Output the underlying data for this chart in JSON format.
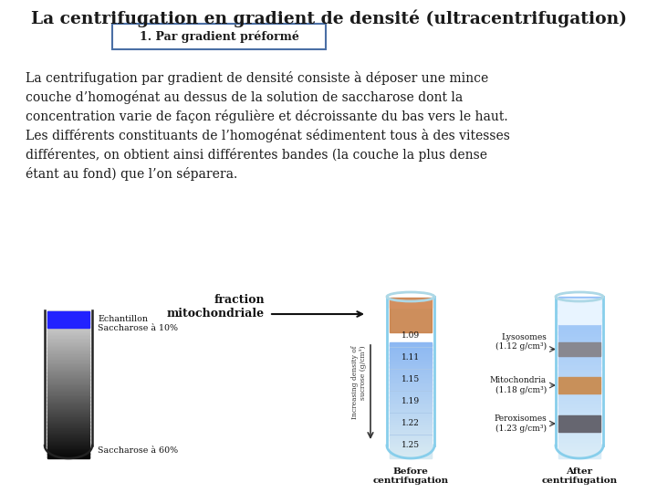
{
  "title": "La centrifugation en gradient de densité (ultracentrifugation)",
  "subtitle": "1. Par gradient préformé",
  "body_text": "La centrifugation par gradient de densité consiste à déposer une mince\ncouche d’homogénat au dessus de la solution de saccharose dont la\nconcentration varie de façon régulière et décroissante du bas vers le haut.\nLes différents constituants de l’homogénat sédimentent tous à des vitesses\ndifférentes, on obtient ainsi différentes bandes (la couche la plus dense\nétant au fond) que l’on séparera.",
  "label_echantillon": "Echantillon",
  "label_saccharose_10": "Saccharose à 10%",
  "label_saccharose_60": "Saccharose à 60%",
  "label_fraction": "fraction\nmitochondriale",
  "label_before": "Before\ncentrifugation",
  "label_after": "After\ncentrifugation",
  "label_increasing": "Increasing density of\nsucrose (g/cm³)",
  "densities": [
    "1.09",
    "1.11",
    "1.15",
    "1.19",
    "1.22",
    "1.25"
  ],
  "label_lysosomes": "Lysosomes\n(1.12 g/cm³)",
  "label_mitochondria": "Mitochondria\n(1.18 g/cm³)",
  "label_peroxisomes": "Peroxisomes\n(1.23 g/cm³)",
  "title_color": "#1a1a1a",
  "box_border_color": "#4a6fa5",
  "text_color": "#1a1a1a"
}
